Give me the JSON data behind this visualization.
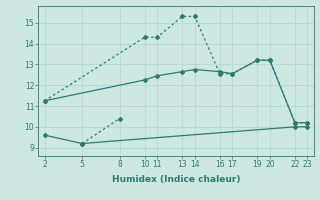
{
  "bg_color": "#cce8e0",
  "line_color": "#2d7b6e",
  "grid_color": "#b0d8d0",
  "xlabel": "Humidex (Indice chaleur)",
  "yticks": [
    9,
    10,
    11,
    12,
    13,
    14,
    15
  ],
  "xticks": [
    2,
    5,
    8,
    10,
    11,
    13,
    14,
    16,
    17,
    19,
    20,
    22,
    23
  ],
  "xlim": [
    1.5,
    23.5
  ],
  "ylim": [
    8.6,
    15.8
  ],
  "line1_x": [
    2,
    10,
    11,
    13,
    14,
    16,
    17,
    19,
    20,
    22,
    23
  ],
  "line1_y": [
    11.25,
    14.3,
    14.3,
    15.3,
    15.3,
    12.55,
    12.55,
    13.2,
    13.2,
    10.2,
    10.2
  ],
  "line2_x": [
    2,
    10,
    11,
    13,
    14,
    16,
    17,
    19,
    20,
    22,
    23
  ],
  "line2_y": [
    11.25,
    12.25,
    12.45,
    12.65,
    12.75,
    12.65,
    12.55,
    13.2,
    13.2,
    10.2,
    10.2
  ],
  "line3_x": [
    5,
    8
  ],
  "line3_y": [
    9.2,
    10.4
  ],
  "line4_x": [
    2,
    5,
    22,
    23
  ],
  "line4_y": [
    9.6,
    9.2,
    10.0,
    10.0
  ],
  "markersize": 2.0,
  "linewidth": 0.9,
  "label_fontsize": 5.5,
  "xlabel_fontsize": 6.5
}
